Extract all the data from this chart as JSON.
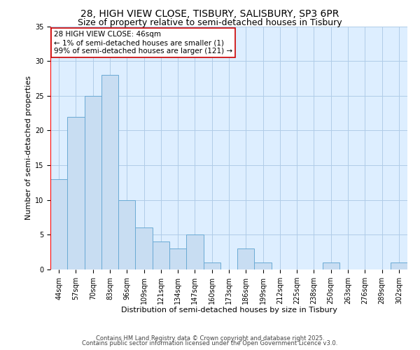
{
  "title_line1": "28, HIGH VIEW CLOSE, TISBURY, SALISBURY, SP3 6PR",
  "title_line2": "Size of property relative to semi-detached houses in Tisbury",
  "xlabel": "Distribution of semi-detached houses by size in Tisbury",
  "ylabel": "Number of semi-detached properties",
  "categories": [
    "44sqm",
    "57sqm",
    "70sqm",
    "83sqm",
    "96sqm",
    "109sqm",
    "121sqm",
    "134sqm",
    "147sqm",
    "160sqm",
    "173sqm",
    "186sqm",
    "199sqm",
    "212sqm",
    "225sqm",
    "238sqm",
    "250sqm",
    "263sqm",
    "276sqm",
    "289sqm",
    "302sqm"
  ],
  "values": [
    13,
    22,
    25,
    28,
    10,
    6,
    4,
    3,
    5,
    1,
    0,
    3,
    1,
    0,
    0,
    0,
    1,
    0,
    0,
    0,
    1
  ],
  "bar_color": "#c8ddf2",
  "bar_edge_color": "#6aaad4",
  "highlight_bar_edge_color": "#ff0000",
  "annotation_box_color": "#ffffff",
  "annotation_box_edge_color": "#cc0000",
  "annotation_text_line1": "28 HIGH VIEW CLOSE: 46sqm",
  "annotation_text_line2": "← 1% of semi-detached houses are smaller (1)",
  "annotation_text_line3": "99% of semi-detached houses are larger (121) →",
  "ylim": [
    0,
    35
  ],
  "yticks": [
    0,
    5,
    10,
    15,
    20,
    25,
    30,
    35
  ],
  "grid_color": "#b0cce8",
  "background_color": "#ffffff",
  "plot_bg_color": "#ddeeff",
  "footer_line1": "Contains HM Land Registry data © Crown copyright and database right 2025.",
  "footer_line2": "Contains public sector information licensed under the Open Government Licence v3.0.",
  "title_fontsize": 10,
  "subtitle_fontsize": 9,
  "axis_label_fontsize": 8,
  "tick_fontsize": 7,
  "annotation_fontsize": 7.5,
  "footer_fontsize": 6
}
